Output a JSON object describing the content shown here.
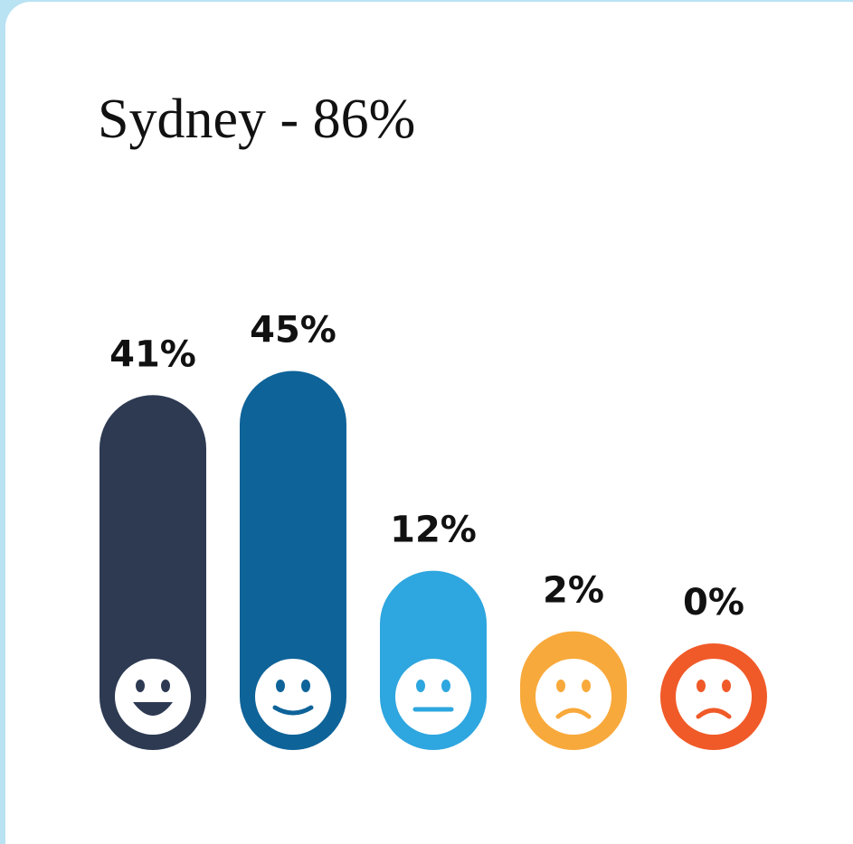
{
  "chart_data": {
    "type": "bar",
    "title": "Sydney - 86%",
    "values": [
      41,
      45,
      12,
      2,
      0
    ],
    "value_labels": [
      "41%",
      "45%",
      "12%",
      "2%",
      "0%"
    ],
    "colors": [
      "#2d3a52",
      "#0e6399",
      "#2ea6df",
      "#f8a93b",
      "#f05a28"
    ]
  }
}
